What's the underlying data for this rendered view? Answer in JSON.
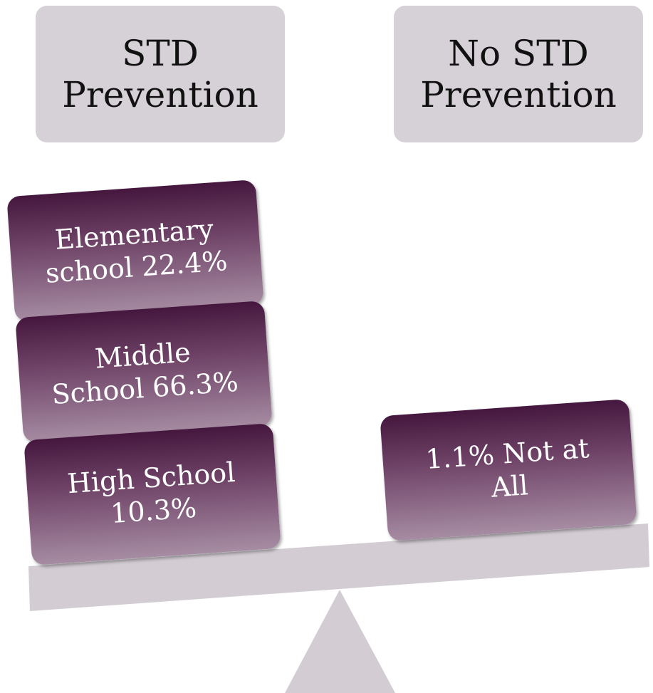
{
  "left_header": {
    "lines": [
      "STD",
      "Prevention"
    ]
  },
  "right_header": {
    "lines": [
      "No STD",
      "Prevention"
    ]
  },
  "left_items": [
    {
      "lines": [
        "Elementary",
        "school 22.4%"
      ]
    },
    {
      "lines": [
        "Middle",
        "School 66.3%"
      ]
    },
    {
      "lines": [
        "High School",
        "10.3%"
      ]
    }
  ],
  "right_items": [
    {
      "lines": [
        "1.1% Not at",
        "All"
      ]
    }
  ]
}
